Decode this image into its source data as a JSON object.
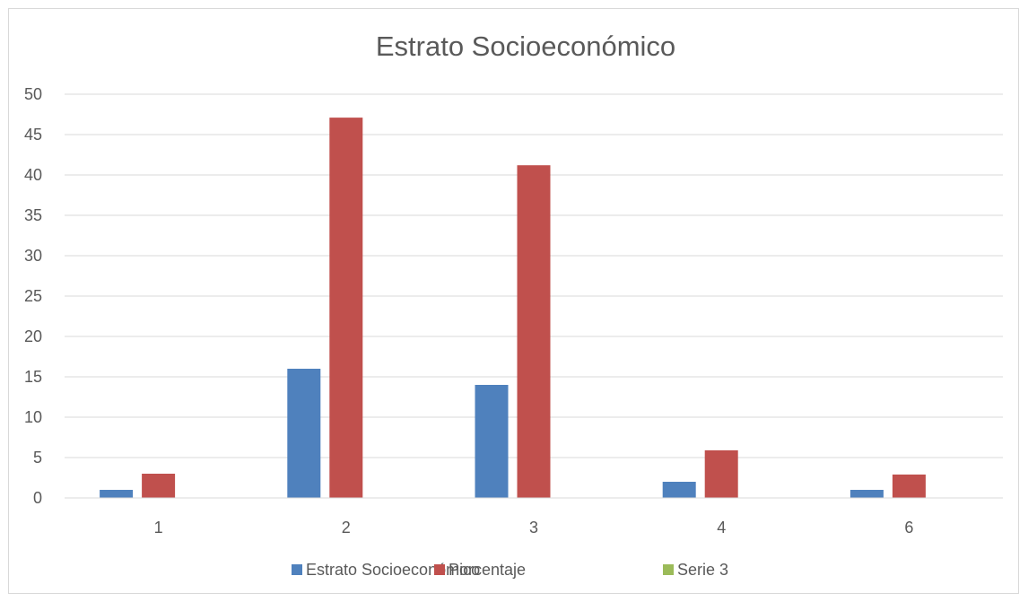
{
  "chart_data": {
    "type": "bar",
    "title": "Estrato Socioeconómico",
    "xlabel": "",
    "ylabel": "",
    "categories": [
      "1",
      "2",
      "3",
      "4",
      "6"
    ],
    "series": [
      {
        "name": "Estrato Socioeconómico",
        "color": "#4f81bd",
        "values": [
          1,
          16,
          14,
          2,
          1
        ]
      },
      {
        "name": "Porcentaje",
        "color": "#c0504d",
        "values": [
          3,
          47.1,
          41.2,
          5.9,
          2.9
        ]
      },
      {
        "name": "Serie 3",
        "color": "#9bbb59",
        "values": [
          0,
          0,
          0,
          0,
          0
        ]
      }
    ],
    "ylim": [
      0,
      50
    ],
    "yticks": [
      "0",
      "5",
      "10",
      "15",
      "20",
      "25",
      "30",
      "35",
      "40",
      "45",
      "50"
    ],
    "grid": true,
    "legend_position": "bottom"
  }
}
